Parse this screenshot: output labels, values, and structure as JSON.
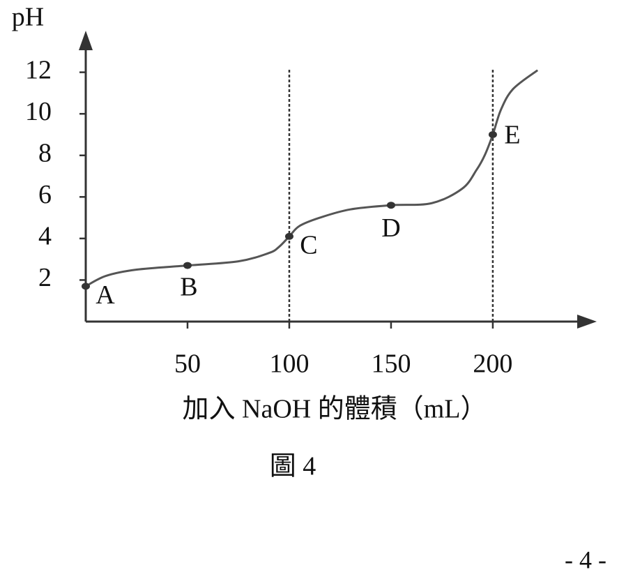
{
  "chart_data": {
    "type": "line",
    "y_label": "pH",
    "x_label": "加入 NaOH 的體積（mL）",
    "caption": "圖 4",
    "xlim": [
      0,
      249
    ],
    "ylim": [
      0,
      13.8
    ],
    "xticks": [
      50,
      100,
      150,
      200
    ],
    "yticks": [
      2,
      4,
      6,
      8,
      10,
      12
    ],
    "color": "#555555",
    "series": [
      {
        "x": [
          0,
          10,
          25,
          50,
          75,
          90,
          95,
          100,
          105,
          115,
          130,
          150,
          170,
          185,
          192,
          196,
          200,
          204,
          210,
          222
        ],
        "values": [
          1.7,
          2.2,
          2.5,
          2.7,
          2.9,
          3.3,
          3.6,
          4.1,
          4.6,
          5.0,
          5.4,
          5.6,
          5.7,
          6.4,
          7.3,
          8.0,
          9.0,
          10.2,
          11.2,
          12.1
        ]
      }
    ],
    "points": [
      {
        "label": "A",
        "x": 0,
        "y": 1.7
      },
      {
        "label": "B",
        "x": 50,
        "y": 2.7
      },
      {
        "label": "C",
        "x": 100,
        "y": 4.1
      },
      {
        "label": "D",
        "x": 150,
        "y": 5.6
      },
      {
        "label": "E",
        "x": 200,
        "y": 9.0
      }
    ],
    "vlines": [
      100,
      200
    ]
  },
  "page_number": "- 4 -"
}
